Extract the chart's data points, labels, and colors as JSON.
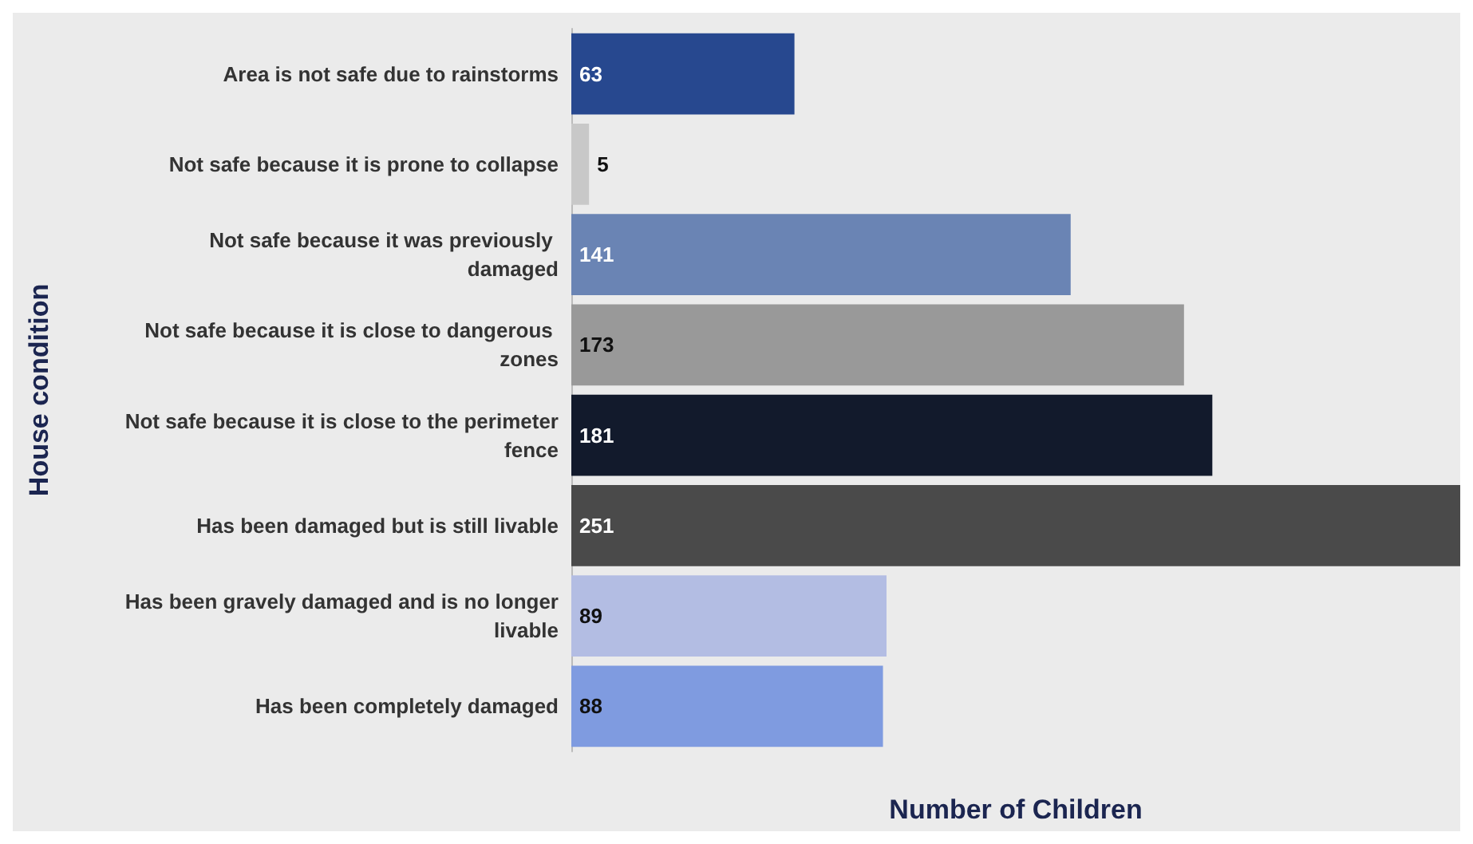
{
  "chart_data": {
    "type": "bar",
    "orientation": "horizontal",
    "xlabel": "Number of Children",
    "ylabel": "House condition",
    "categories": [
      "Area is not safe due to rainstorms",
      "Not safe because it is prone to collapse",
      "Not safe because it was previously damaged",
      "Not safe because it is close to dangerous zones",
      "Not safe because it is close to the perimeter fence",
      "Has been damaged but is still livable",
      "Has been gravely damaged and is no longer livable",
      "Has been completely damaged"
    ],
    "values": [
      63,
      5,
      141,
      173,
      181,
      251,
      89,
      88
    ],
    "colors": [
      "#27488f",
      "#c8c8c8",
      "#6a84b4",
      "#999999",
      "#121a2c",
      "#4a4a4a",
      "#b3bde3",
      "#7f9be0"
    ],
    "data_labels": true
  }
}
